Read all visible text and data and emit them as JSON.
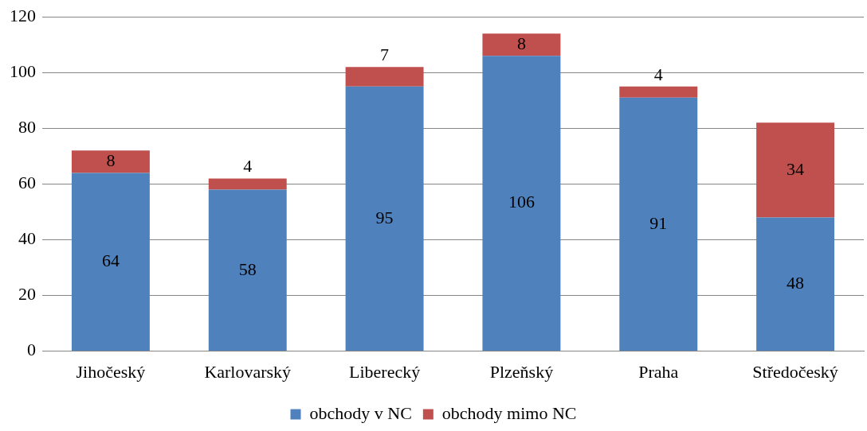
{
  "chart_data": {
    "type": "bar",
    "stacked": true,
    "categories": [
      "Jihočeský",
      "Karlovarský",
      "Liberecký",
      "Plzeňský",
      "Praha",
      "Středočeský"
    ],
    "series": [
      {
        "name": "obchody v NC",
        "color": "#4f81bd",
        "values": [
          64,
          58,
          95,
          106,
          91,
          48
        ]
      },
      {
        "name": "obchody mimo NC",
        "color": "#c0504d",
        "values": [
          8,
          4,
          7,
          8,
          4,
          34
        ]
      }
    ],
    "ylim": [
      0,
      120
    ],
    "yticks": [
      0,
      20,
      40,
      60,
      80,
      100,
      120
    ],
    "grid": "y",
    "legend": "bottom",
    "data_labels": true
  }
}
